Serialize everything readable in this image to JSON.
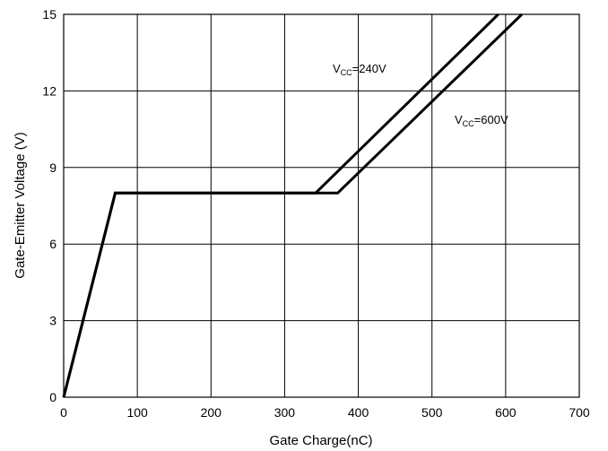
{
  "chart_data": {
    "type": "line",
    "xlabel": "Gate Charge(nC)",
    "ylabel": "Gate-Emitter Voltage (V)",
    "xlim": [
      0,
      700
    ],
    "ylim": [
      0,
      15
    ],
    "xticks": [
      0,
      100,
      200,
      300,
      400,
      500,
      600,
      700
    ],
    "yticks": [
      0,
      3,
      6,
      9,
      12,
      15
    ],
    "grid": true,
    "series": [
      {
        "name": "VCC=240V",
        "label_main": "V",
        "label_sub": "CC",
        "label_rest": "=240V",
        "x": [
          0,
          70,
          342,
          590
        ],
        "y": [
          0,
          8,
          8,
          15
        ]
      },
      {
        "name": "VCC=600V",
        "label_main": "V",
        "label_sub": "CC",
        "label_rest": "=600V",
        "x": [
          0,
          70,
          372,
          622
        ],
        "y": [
          0,
          8,
          8,
          15
        ]
      }
    ]
  }
}
